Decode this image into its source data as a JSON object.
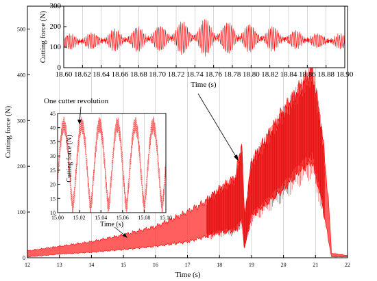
{
  "chart_data": [
    {
      "id": "main",
      "type": "line",
      "xlabel": "Time (s)",
      "ylabel": "Cutting force (N)",
      "xlim": [
        12,
        22
      ],
      "ylim": [
        0,
        550
      ],
      "xticks": [
        "12",
        "13",
        "14",
        "15",
        "16",
        "17",
        "18",
        "19",
        "20",
        "21",
        "22"
      ],
      "yticks": [
        "0",
        "100",
        "200",
        "300",
        "400",
        "500"
      ],
      "color": "#ff0000",
      "series": [
        {
          "x": [
            12.0,
            13.0,
            14.0,
            15.0,
            16.0,
            17.0,
            17.5,
            18.0,
            18.5,
            18.7,
            18.78,
            19.0,
            19.5,
            20.0,
            20.5,
            20.9,
            21.2,
            21.4,
            21.5,
            22.0
          ],
          "upper": [
            15,
            25,
            35,
            50,
            68,
            100,
            120,
            150,
            175,
            250,
            90,
            210,
            265,
            320,
            370,
            410,
            280,
            130,
            10,
            5
          ],
          "lower": [
            2,
            8,
            12,
            18,
            25,
            35,
            45,
            55,
            60,
            80,
            20,
            90,
            120,
            150,
            190,
            210,
            120,
            40,
            2,
            2
          ],
          "mean": [
            8,
            15,
            22,
            30,
            42,
            62,
            78,
            95,
            115,
            180,
            55,
            150,
            185,
            225,
            265,
            295,
            200,
            80,
            5,
            3
          ]
        }
      ],
      "annotations": [
        "One cutter revolution"
      ]
    },
    {
      "id": "inset-top",
      "type": "line",
      "xlabel": "Time (s)",
      "ylabel": "Cutting force (N)",
      "xlim": [
        18.6,
        18.9
      ],
      "ylim": [
        0,
        300
      ],
      "xticks": [
        "18.60",
        "18.62",
        "18.64",
        "18.66",
        "18.68",
        "18.70",
        "18.72",
        "18.74",
        "18.76",
        "18.78",
        "18.80",
        "18.82",
        "18.84",
        "18.86",
        "18.88",
        "18.90"
      ],
      "yticks": [
        "0",
        "100",
        "200",
        "300"
      ],
      "color": "#ff0000",
      "series": [
        {
          "x": [
            18.6,
            18.63,
            18.66,
            18.69,
            18.72,
            18.75,
            18.78,
            18.81,
            18.84,
            18.87,
            18.9
          ],
          "mean": [
            125,
            130,
            135,
            140,
            145,
            148,
            145,
            142,
            138,
            132,
            128
          ],
          "amplitude": [
            35,
            40,
            50,
            60,
            75,
            85,
            80,
            60,
            45,
            35,
            30
          ]
        }
      ]
    },
    {
      "id": "inset-bottom",
      "type": "line",
      "xlabel": "Time (s)",
      "ylabel": "Cutting force (N)",
      "xlim": [
        15.0,
        15.1
      ],
      "ylim": [
        10,
        45
      ],
      "xticks": [
        "15.00",
        "15.02",
        "15.04",
        "15.06",
        "15.08",
        "15.10"
      ],
      "yticks": [
        "10",
        "15",
        "20",
        "25",
        "30",
        "35",
        "40",
        "45"
      ],
      "color": "#ff0000",
      "series": [
        {
          "period": 0.0165,
          "minimum": 12,
          "maximum": 41
        }
      ]
    }
  ]
}
